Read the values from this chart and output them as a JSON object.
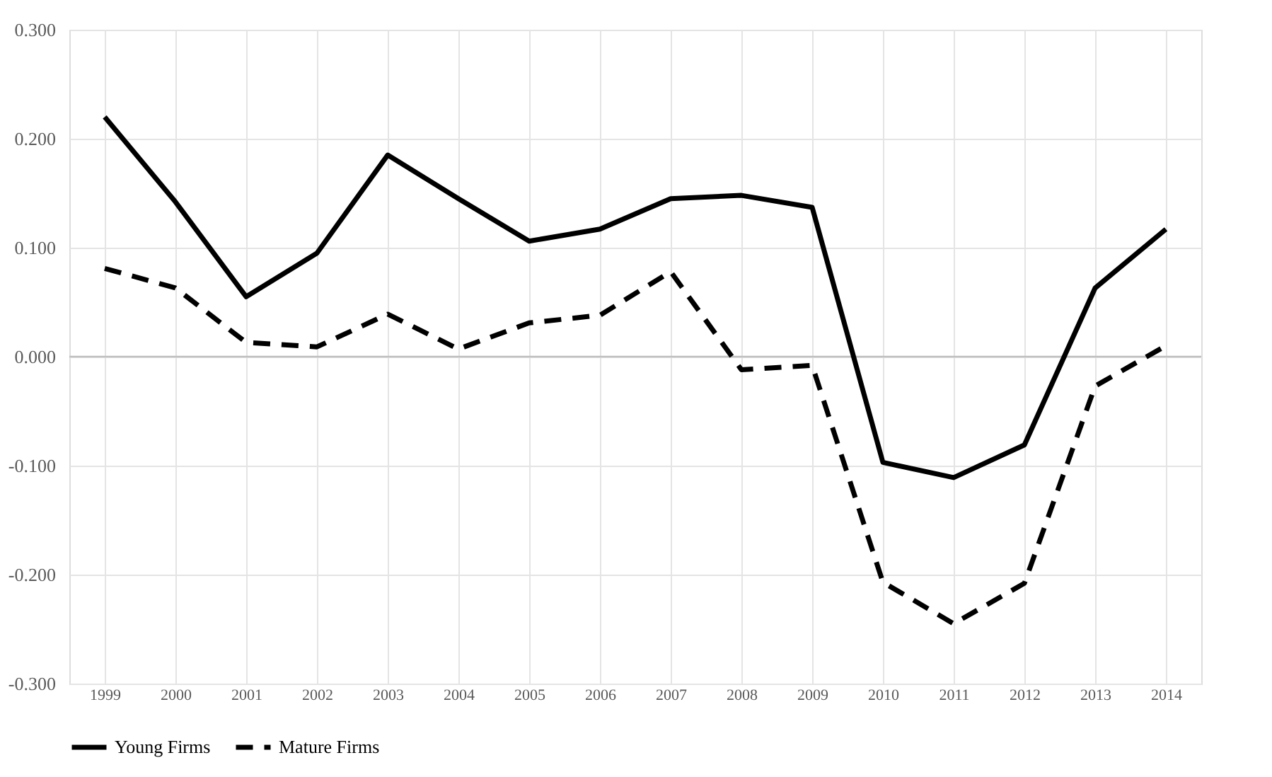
{
  "chart_data": {
    "type": "line",
    "categories": [
      "1999",
      "2000",
      "2001",
      "2002",
      "2003",
      "2004",
      "2005",
      "2006",
      "2007",
      "2008",
      "2009",
      "2010",
      "2011",
      "2012",
      "2013",
      "2014"
    ],
    "series": [
      {
        "name": "Young Firms",
        "color": "#000000",
        "line_style": "solid",
        "values": [
          0.22,
          0.142,
          0.055,
          0.095,
          0.185,
          0.145,
          0.106,
          0.117,
          0.145,
          0.148,
          0.137,
          -0.097,
          -0.111,
          -0.081,
          0.063,
          0.117
        ]
      },
      {
        "name": "Mature Firms",
        "color": "#000000",
        "line_style": "dashed",
        "values": [
          0.081,
          0.063,
          0.013,
          0.009,
          0.039,
          0.007,
          0.031,
          0.038,
          0.078,
          -0.012,
          -0.008,
          -0.207,
          -0.245,
          -0.208,
          -0.027,
          0.01
        ]
      }
    ],
    "ylim": [
      -0.3,
      0.3
    ],
    "yticks": [
      {
        "value": -0.3,
        "label": "-0.300"
      },
      {
        "value": -0.2,
        "label": "-0.200"
      },
      {
        "value": -0.1,
        "label": "-0.100"
      },
      {
        "value": 0,
        "label": "0.000"
      },
      {
        "value": 0.1,
        "label": "0.100"
      },
      {
        "value": 0.2,
        "label": "0.200"
      },
      {
        "value": 0.3,
        "label": "0.300"
      }
    ],
    "ref_lines": [
      {
        "axis": "y",
        "value": 0,
        "color": "#bfbfbf",
        "line_style": "solid"
      }
    ],
    "grid": true,
    "legend": "bottom",
    "marker": "none"
  }
}
